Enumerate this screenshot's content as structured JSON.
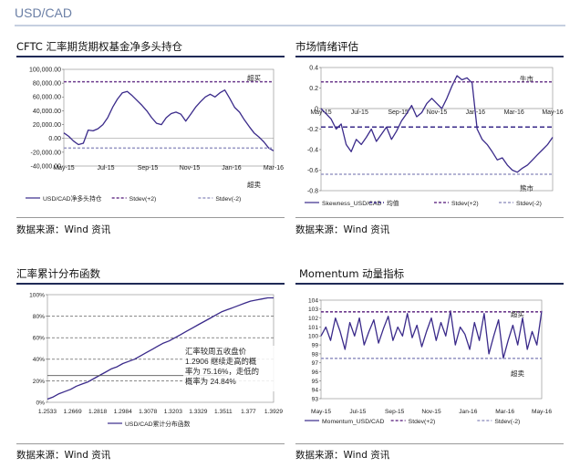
{
  "header": {
    "title": "USD/CAD"
  },
  "panels": [
    {
      "title": "CFTC 汇率期货期权基金净多头持仓",
      "source": "数据来源：Wind 资讯"
    },
    {
      "title": "市场情绪评估",
      "source": "数据来源：Wind 资讯"
    },
    {
      "title": "汇率累计分布函数",
      "source": "数据来源：Wind 资讯"
    },
    {
      "title": "Momentum 动量指标",
      "source": "数据来源：Wind 资讯"
    }
  ],
  "chart_data": [
    {
      "type": "line",
      "title": "",
      "ylim": [
        -40000,
        100000
      ],
      "yticks": [
        "100,000.00",
        "80,000.00",
        "60,000.00",
        "40,000.00",
        "20,000.00",
        "0.00",
        "-20,000.00",
        "-40,000.00"
      ],
      "yticks_values": [
        100000,
        80000,
        60000,
        40000,
        20000,
        0,
        -20000,
        -40000
      ],
      "xticks": [
        "May-15",
        "Jul-15",
        "Sep-15",
        "Nov-15",
        "Jan-16",
        "Mar-16"
      ],
      "series": [
        {
          "name": "USD/CAD净多头持仓",
          "color": "#3a2a8a",
          "style": "solid",
          "values": [
            8000,
            3000,
            -4000,
            -9000,
            -7000,
            12000,
            11000,
            14000,
            20000,
            30000,
            45000,
            57000,
            66000,
            68000,
            62000,
            55000,
            48000,
            40000,
            30000,
            22000,
            20000,
            30000,
            36000,
            38000,
            35000,
            25000,
            35000,
            45000,
            53000,
            60000,
            64000,
            60000,
            66000,
            70000,
            58000,
            45000,
            38000,
            27000,
            17000,
            8000,
            2000,
            -5000,
            -14000,
            -18000
          ]
        },
        {
          "name": "Stdev(+2)",
          "color": "#6e3c8e",
          "style": "dashed",
          "values": [
            82000
          ]
        },
        {
          "name": "Stdev(-2)",
          "color": "#9b9bc6",
          "style": "dashed",
          "values": [
            -14000
          ]
        }
      ],
      "annotations": [
        "超买",
        "超卖"
      ]
    },
    {
      "type": "line",
      "title": "",
      "ylim": [
        -0.8,
        0.4
      ],
      "yticks": [
        "0.4",
        "0.2",
        "0",
        "-0.2",
        "-0.4",
        "-0.6",
        "-0.8"
      ],
      "yticks_values": [
        0.4,
        0.2,
        0,
        -0.2,
        -0.4,
        -0.6,
        -0.8
      ],
      "xticks": [
        "May-15",
        "Jul-15",
        "Sep-15",
        "Nov-15",
        "Jan-16",
        "Mar-16",
        "May-16"
      ],
      "series": [
        {
          "name": "Skewness_USD/CAD",
          "color": "#3a2a8a",
          "style": "solid",
          "values": [
            0.0,
            -0.05,
            -0.1,
            -0.2,
            -0.15,
            -0.35,
            -0.42,
            -0.3,
            -0.35,
            -0.28,
            -0.2,
            -0.32,
            -0.25,
            -0.18,
            -0.3,
            -0.22,
            -0.12,
            -0.05,
            0.03,
            -0.08,
            -0.04,
            0.05,
            0.1,
            0.05,
            0.0,
            0.1,
            0.22,
            0.32,
            0.28,
            0.3,
            0.25,
            -0.2,
            -0.3,
            -0.35,
            -0.42,
            -0.5,
            -0.48,
            -0.55,
            -0.6,
            -0.62,
            -0.58,
            -0.55,
            -0.5,
            -0.45,
            -0.4,
            -0.35,
            -0.28
          ]
        },
        {
          "name": "均值",
          "color": "#3a2a8a",
          "style": "dashed",
          "values": [
            -0.18
          ]
        },
        {
          "name": "Stdev(+2)",
          "color": "#6e3c8e",
          "style": "dashed",
          "values": [
            0.26
          ]
        },
        {
          "name": "Stdev(-2)",
          "color": "#9b9bc6",
          "style": "dashed",
          "values": [
            -0.64
          ]
        }
      ],
      "annotations": [
        "牛市",
        "熊市"
      ]
    },
    {
      "type": "line",
      "title": "",
      "ylim": [
        0,
        100
      ],
      "yticks": [
        "100%",
        "80%",
        "60%",
        "40%",
        "20%",
        "0%"
      ],
      "yticks_values": [
        100,
        80,
        60,
        40,
        20,
        0
      ],
      "xticks": [
        "1.2533",
        "1.2669",
        "1.2818",
        "1.2984",
        "1.3078",
        "1.3203",
        "1.3329",
        "1.3511",
        "1.377",
        "1.3929"
      ],
      "series": [
        {
          "name": "USD/CAD累计分布函数",
          "color": "#3a2a8a",
          "style": "solid",
          "values": [
            3,
            5,
            8,
            10,
            12,
            15,
            17,
            19,
            22,
            25,
            28,
            31,
            33,
            36,
            38,
            40,
            43,
            46,
            49,
            52,
            55,
            57,
            60,
            63,
            66,
            69,
            72,
            75,
            78,
            81,
            84,
            86,
            88,
            90,
            92,
            94,
            95,
            96,
            97,
            97
          ]
        }
      ],
      "annotations": [
        "汇率较周五收盘价1.2906 继续走高的概率为 75.16%，走低的概率为 24.84%"
      ],
      "marker_level": 24.84
    },
    {
      "type": "line",
      "title": "",
      "ylim": [
        93,
        104
      ],
      "yticks": [
        "104",
        "103",
        "102",
        "101",
        "100",
        "99",
        "98",
        "97",
        "96",
        "95",
        "94",
        "93"
      ],
      "yticks_values": [
        104,
        103,
        102,
        101,
        100,
        99,
        98,
        97,
        96,
        95,
        94,
        93
      ],
      "xticks": [
        "May-15",
        "Jul-15",
        "Sep-15",
        "Nov-15",
        "Jan-16",
        "Mar-16",
        "May-16"
      ],
      "series": [
        {
          "name": "Momentum_USD/CAD",
          "color": "#3a2a8a",
          "style": "solid",
          "values": [
            100,
            101,
            99.5,
            102,
            100.5,
            98.5,
            101.5,
            100,
            102,
            99,
            100.5,
            101.8,
            99.2,
            100.8,
            102.2,
            99.5,
            101,
            100,
            102.5,
            99.8,
            101.2,
            98.8,
            100.5,
            102,
            99.5,
            101.5,
            100,
            102.8,
            99,
            101,
            100.2,
            98.5,
            101.5,
            99.5,
            102.5,
            98,
            100,
            101.8,
            97.5,
            99.5,
            101.2,
            99,
            102,
            98.5,
            100.5,
            99,
            102.8
          ]
        },
        {
          "name": "Stdev(+2)",
          "color": "#6e3c8e",
          "style": "dashed",
          "values": [
            102.7
          ]
        },
        {
          "name": "Stdev(-2)",
          "color": "#9b9bc6",
          "style": "dashed",
          "values": [
            97.5
          ]
        }
      ],
      "annotations": [
        "超买",
        "超卖"
      ]
    }
  ]
}
